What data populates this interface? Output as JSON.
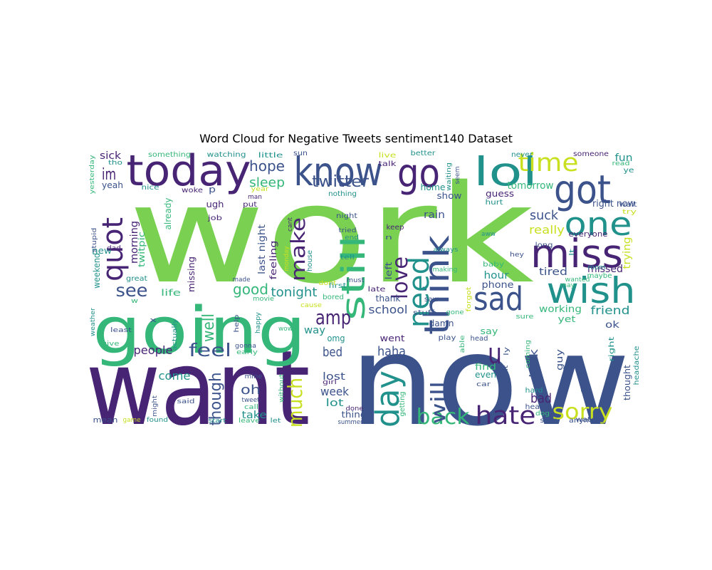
{
  "title": "Word Cloud for Negative Tweets sentiment140 Dataset",
  "palette": {
    "lime": "#7ad151",
    "teal": "#21918c",
    "navy": "#3b528b",
    "purple": "#482475",
    "green": "#35b779",
    "yellow": "#c8e020",
    "aqua": "#2a9d8f"
  },
  "words": [
    "work",
    "now",
    "want",
    "going",
    "today",
    "know",
    "go",
    "lol",
    "got",
    "time",
    "quot",
    "still",
    "think",
    "need",
    "miss",
    "one",
    "wish",
    "sad",
    "day",
    "back",
    "hate",
    "sorry",
    "amp",
    "twitter",
    "hope",
    "sleep",
    "im",
    "sick",
    "love",
    "make",
    "much",
    "u",
    "will",
    "see",
    "good",
    "tonight",
    "feel",
    "though",
    "people",
    "school",
    "well",
    "bed",
    "haha",
    "oh",
    "week",
    "come",
    "lost",
    "lot",
    "take",
    "friend",
    "working",
    "tired",
    "missed",
    "right now",
    "tomorrow",
    "suck",
    "really",
    "rain",
    "guess",
    "show",
    "home",
    "last night",
    "feeling",
    "morning",
    "yeah",
    "new",
    "weekend",
    "twitpic",
    "missing",
    "life",
    "something",
    "watching",
    "little",
    "sun",
    "live",
    "talk",
    "better",
    "never",
    "someone",
    "fun",
    "ye",
    "read",
    "wait",
    "try",
    "trying",
    "everyone",
    "maybe",
    "mom",
    "hurt",
    "long",
    "hey",
    "baby",
    "phone",
    "hour",
    "look",
    "bad",
    "guy",
    "yet",
    "ok",
    "cold",
    "watch",
    "thought",
    "headache",
    "right",
    "anymore",
    "soon",
    "dog",
    "hear",
    "hard",
    "coming",
    "sure",
    "bit",
    "ly",
    "even",
    "find",
    "say",
    "head",
    "play",
    "damn",
    "stuff",
    "gone",
    "went",
    "omg",
    "way",
    "thank",
    "late",
    "first",
    "left",
    "keep",
    "saw",
    "always",
    "making",
    "aww",
    "nothing",
    "night",
    "tried",
    "end",
    "tell",
    "must",
    "dont",
    "cause",
    "movie",
    "made",
    "bored",
    "house",
    "monday",
    "cant",
    "ugh",
    "p",
    "job",
    "put",
    "man",
    "year",
    "nice",
    "woke",
    "already",
    "yesterday",
    "tho",
    "stupid",
    "dad",
    "great",
    "w",
    "x",
    "actually",
    "weather",
    "least",
    "give",
    "help",
    "happy",
    "wow",
    "gonna",
    "early",
    "mine",
    "tweet",
    "said",
    "shit",
    "without",
    "might",
    "game",
    "found",
    "mean",
    "start",
    "leave",
    "let",
    "summer",
    "girl",
    "done",
    "thing",
    "believe",
    "getting",
    "car",
    "able",
    "forgot",
    "wanted",
    "may",
    "call",
    "waiting",
    "seem",
    "n",
    "lt"
  ]
}
